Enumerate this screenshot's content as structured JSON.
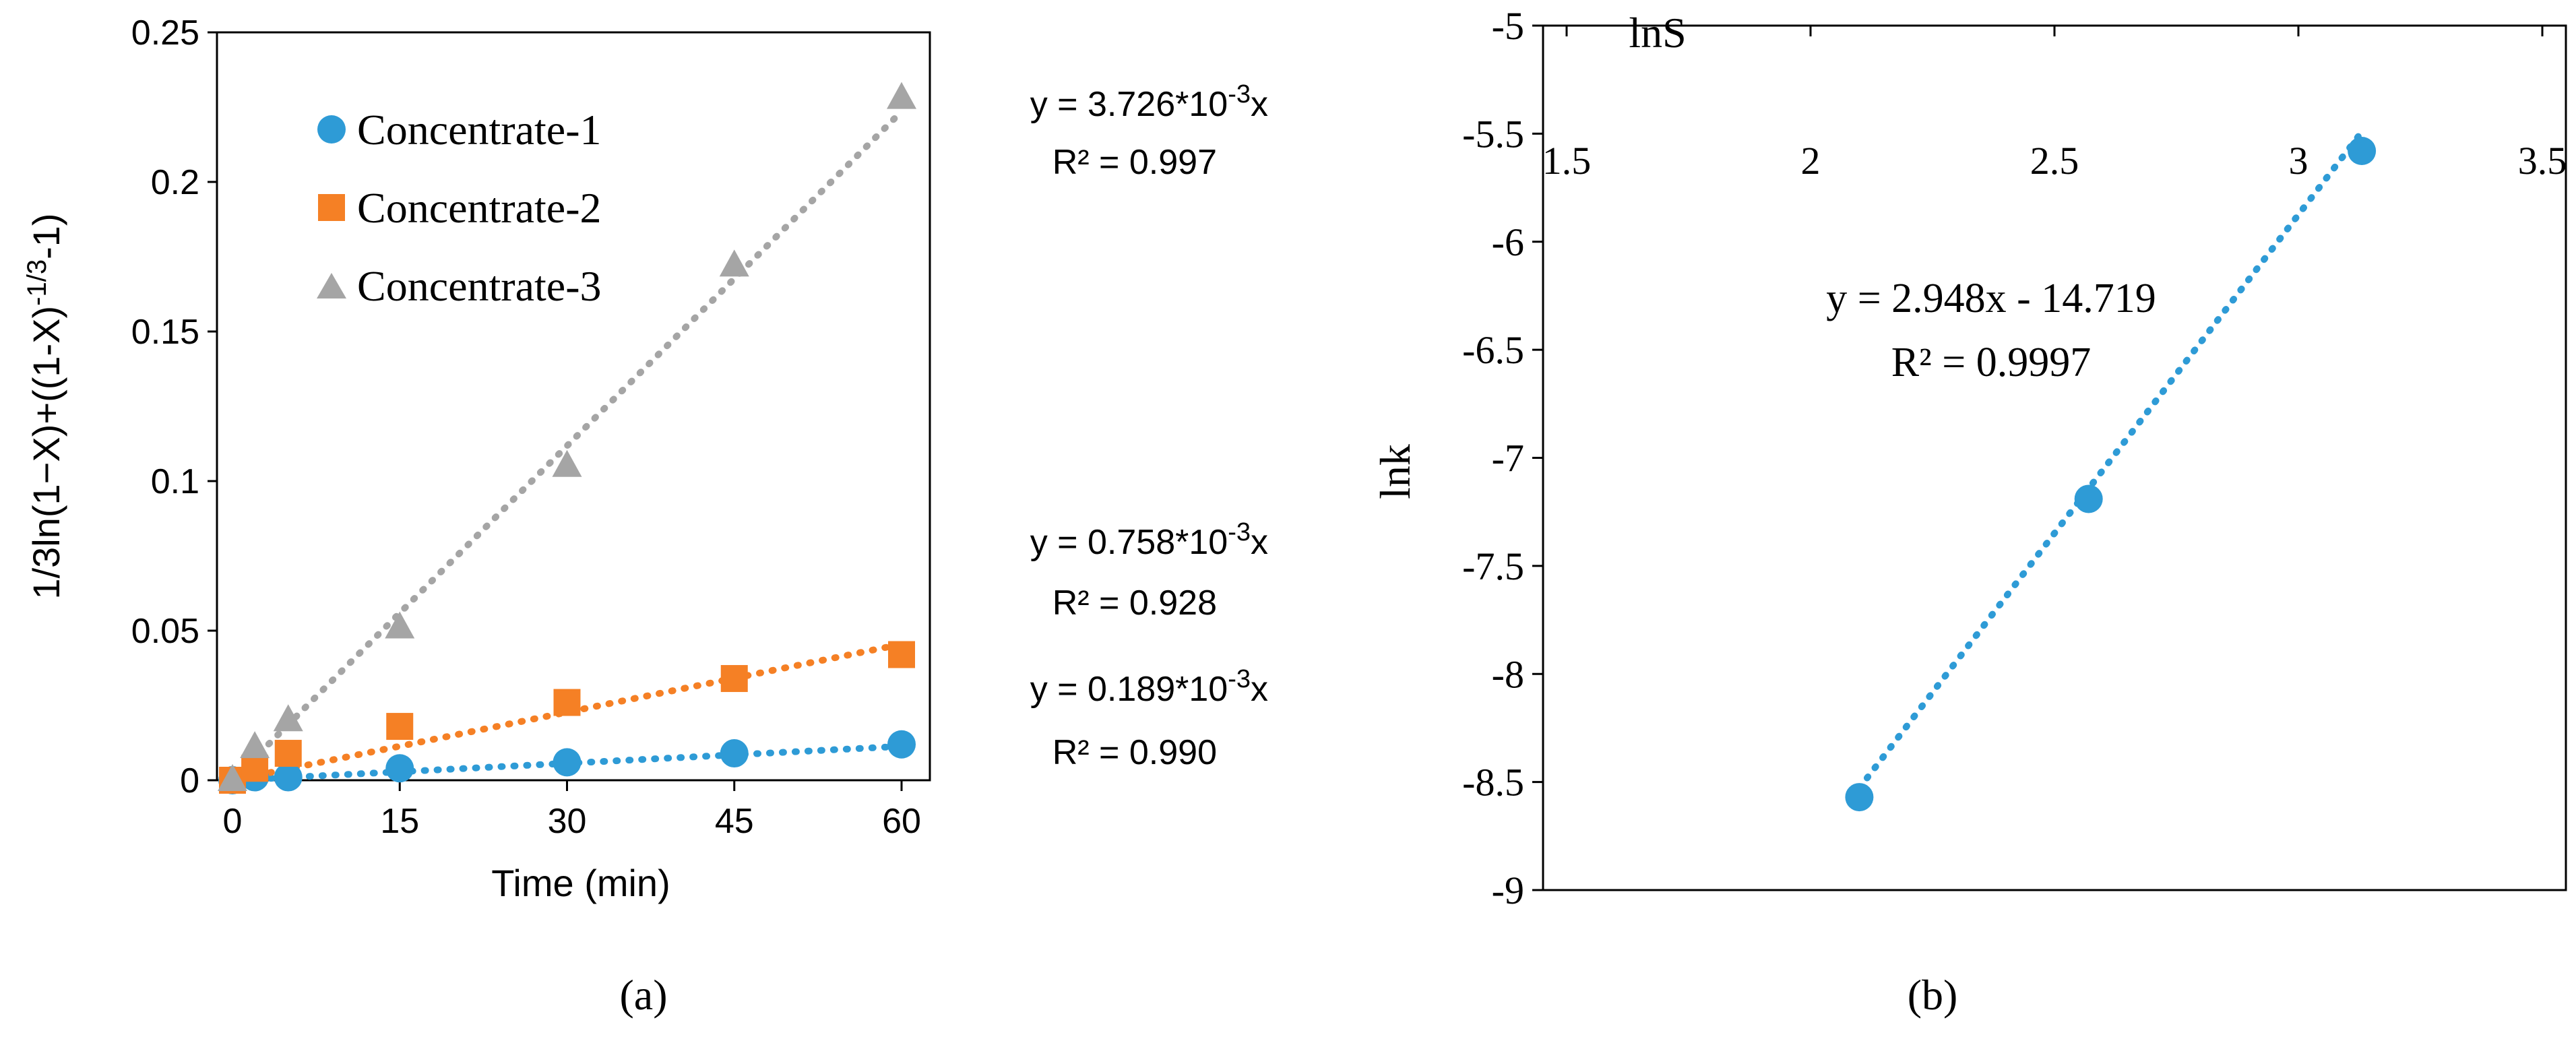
{
  "chart_data": [
    {
      "type": "scatter",
      "panel_label": "(a)",
      "xlabel": "Time (min)",
      "ylabel": "1/3ln(1−X)+((1-X)^(-1/3)-1)",
      "ylabel_parts": {
        "main": "1/3ln(1−X)+((1-X)",
        "sup": "-1/3",
        "tail": "-1)"
      },
      "xlim": [
        -1,
        61
      ],
      "ylim": [
        0,
        0.25
      ],
      "xticks": [
        0,
        15,
        30,
        45,
        60
      ],
      "xtick_labels": [
        "0",
        "15",
        "30",
        "45",
        "60"
      ],
      "yticks": [
        0,
        0.05,
        0.1,
        0.15,
        0.2,
        0.25
      ],
      "ytick_labels": [
        "0",
        "0.05",
        "0.1",
        "0.15",
        "0.2",
        "0.25"
      ],
      "grid": false,
      "legend_position": "top-left",
      "series": [
        {
          "name": "Concentrate-1",
          "marker": "circle",
          "color": "#2E9BD6",
          "x": [
            0,
            2,
            5,
            15,
            30,
            45,
            60
          ],
          "y": [
            0.0,
            0.001,
            0.001,
            0.004,
            0.006,
            0.009,
            0.012
          ],
          "trendline": {
            "slope": 0.000189,
            "intercept": 0
          },
          "equation": {
            "prefix": "y = 0.189*10",
            "sup": "-3",
            "suffix": "x"
          },
          "r2": "R² = 0.990"
        },
        {
          "name": "Concentrate-2",
          "marker": "square",
          "color": "#F58025",
          "x": [
            0,
            2,
            5,
            15,
            30,
            45,
            60
          ],
          "y": [
            0.0,
            0.004,
            0.009,
            0.018,
            0.026,
            0.034,
            0.042
          ],
          "trendline": {
            "slope": 0.000758,
            "intercept": 0
          },
          "equation": {
            "prefix": "y = 0.758*10",
            "sup": "-3",
            "suffix": "x"
          },
          "r2": "R² = 0.928"
        },
        {
          "name": "Concentrate-3",
          "marker": "triangle",
          "color": "#A5A5A5",
          "x": [
            0,
            2,
            5,
            15,
            30,
            45,
            60
          ],
          "y": [
            0.0,
            0.011,
            0.02,
            0.051,
            0.105,
            0.172,
            0.228
          ],
          "trendline": {
            "slope": 0.003726,
            "intercept": 0
          },
          "equation": {
            "prefix": "y = 3.726*10",
            "sup": "-3",
            "suffix": "x"
          },
          "r2": "R² = 0.997"
        }
      ]
    },
    {
      "type": "scatter",
      "panel_label": "(b)",
      "xlabel": "lnS",
      "ylabel": "lnk",
      "xlim": [
        1.5,
        3.5
      ],
      "ylim": [
        -9,
        -5
      ],
      "xticks": [
        1.5,
        2,
        2.5,
        3,
        3.5
      ],
      "xtick_labels": [
        "1.5",
        "2",
        "2.5",
        "3",
        "3.5"
      ],
      "yticks": [
        -5,
        -5.5,
        -6,
        -6.5,
        -7,
        -7.5,
        -8,
        -8.5,
        -9
      ],
      "ytick_labels": [
        "-5",
        "-5.5",
        "-6",
        "-6.5",
        "-7",
        "-7.5",
        "-8",
        "-8.5",
        "-9"
      ],
      "xaxis_position": "top",
      "grid": false,
      "series": [
        {
          "marker": "circle",
          "color": "#2E9BD6",
          "x": [
            2.1,
            2.57,
            3.13
          ],
          "y": [
            -8.57,
            -7.19,
            -5.58
          ],
          "trendline": {
            "slope": 2.948,
            "intercept": -14.719
          },
          "equation": "y = 2.948x - 14.719",
          "r2": "R² = 0.9997"
        }
      ]
    }
  ]
}
